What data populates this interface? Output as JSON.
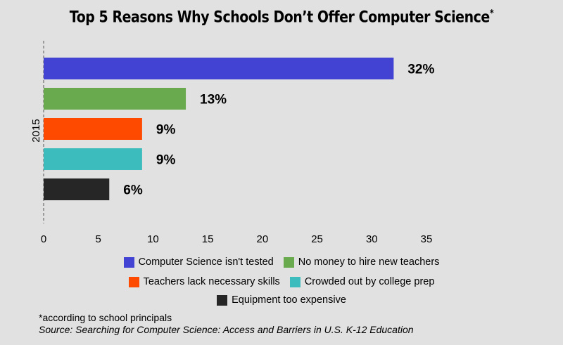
{
  "title": "Top 5 Reasons Why Schools Don’t Offer Computer Science",
  "title_mark": "*",
  "chart_data": {
    "type": "bar",
    "orientation": "horizontal",
    "category_axis_label": "2015",
    "xlim": [
      0,
      35
    ],
    "xticks": [
      0,
      5,
      10,
      15,
      20,
      25,
      30,
      35
    ],
    "grid": false,
    "legend_position": "bottom",
    "series": [
      {
        "name": "Computer Science isn't tested",
        "value": 32,
        "label": "32%",
        "color": "#4343d3"
      },
      {
        "name": "No money to hire new teachers",
        "value": 13,
        "label": "13%",
        "color": "#6aaa4f"
      },
      {
        "name": "Teachers lack necessary skills",
        "value": 9,
        "label": "9%",
        "color": "#fd4a00"
      },
      {
        "name": "Crowded out by college prep",
        "value": 9,
        "label": "9%",
        "color": "#3cbcbc"
      },
      {
        "name": "Equipment too expensive",
        "value": 6,
        "label": "6%",
        "color": "#262626"
      }
    ]
  },
  "footnote": "*according to school principals",
  "source": "Source: Searching for Computer Science: Access and Barriers in U.S. K-12 Education"
}
